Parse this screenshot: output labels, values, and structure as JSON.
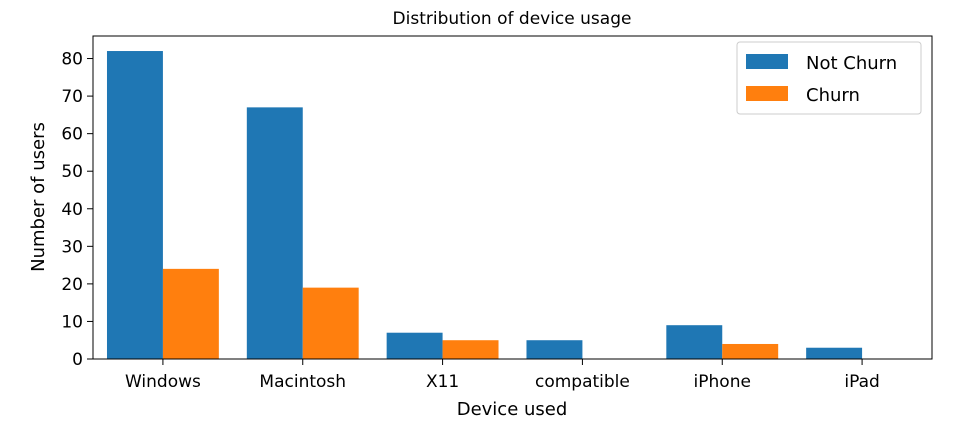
{
  "chart_data": {
    "type": "bar",
    "title": "Distribution of device usage",
    "xlabel": "Device used",
    "ylabel": "Number of users",
    "categories": [
      "Windows",
      "Macintosh",
      "X11",
      "compatible",
      "iPhone",
      "iPad"
    ],
    "series": [
      {
        "name": "Not Churn",
        "values": [
          82,
          67,
          7,
          5,
          9,
          3
        ],
        "color": "#1f77b4"
      },
      {
        "name": "Churn",
        "values": [
          24,
          19,
          5,
          0,
          4,
          0
        ],
        "color": "#ff7f0e"
      }
    ],
    "ylim": [
      0,
      86
    ],
    "yticks": [
      0,
      10,
      20,
      30,
      40,
      50,
      60,
      70,
      80
    ],
    "yticks_text": [
      "0",
      "10",
      "20",
      "30",
      "40",
      "50",
      "60",
      "70",
      "80"
    ],
    "grid": false,
    "legend_position": "top-right"
  }
}
